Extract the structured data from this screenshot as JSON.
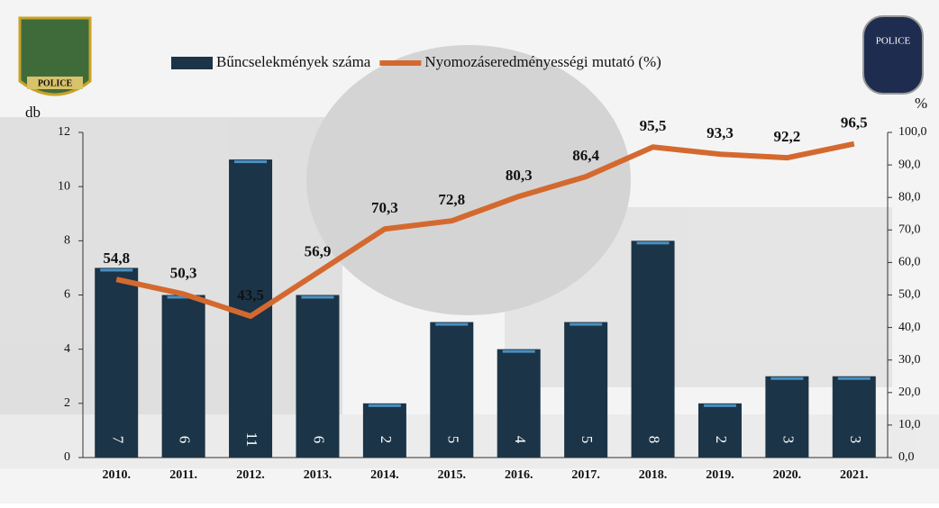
{
  "chart_data": {
    "type": "bar",
    "ylabel": "db",
    "y2label": "%",
    "categories": [
      "2010.",
      "2011.",
      "2012.",
      "2013.",
      "2014.",
      "2015.",
      "2016.",
      "2017.",
      "2018.",
      "2019.",
      "2020.",
      "2021."
    ],
    "series": [
      {
        "name": "Bűncselekmények száma",
        "type": "bar",
        "color": "#1b3447",
        "values": [
          7,
          6,
          11,
          6,
          2,
          5,
          4,
          5,
          8,
          2,
          3,
          3
        ]
      },
      {
        "name": "Nyomozáseredményességi mutató (%)",
        "type": "line",
        "axis": "y2",
        "color": "#d4692f",
        "values": [
          54.8,
          50.3,
          43.5,
          56.9,
          70.3,
          72.8,
          80.3,
          86.4,
          95.5,
          93.3,
          92.2,
          96.5
        ],
        "value_labels": [
          "54,8",
          "50,3",
          "43,5",
          "56,9",
          "70,3",
          "72,8",
          "80,3",
          "86,4",
          "95,5",
          "93,3",
          "92,2",
          "96,5"
        ]
      }
    ],
    "ylim": [
      0,
      12
    ],
    "yticks": [
      0,
      2,
      4,
      6,
      8,
      10,
      12
    ],
    "y2lim": [
      0,
      100
    ],
    "y2ticks": [
      {
        "value": 0,
        "label": "0,0"
      },
      {
        "value": 10,
        "label": "10,0"
      },
      {
        "value": 20,
        "label": "20,0"
      },
      {
        "value": 30,
        "label": "30,0"
      },
      {
        "value": 40,
        "label": "40,0"
      },
      {
        "value": 50,
        "label": "50,0"
      },
      {
        "value": 60,
        "label": "60,0"
      },
      {
        "value": 70,
        "label": "70,0"
      },
      {
        "value": 80,
        "label": "80,0"
      },
      {
        "value": 90,
        "label": "90,0"
      },
      {
        "value": 100,
        "label": "100,0"
      }
    ]
  },
  "logos": [
    "POLICE",
    "POLICE"
  ]
}
